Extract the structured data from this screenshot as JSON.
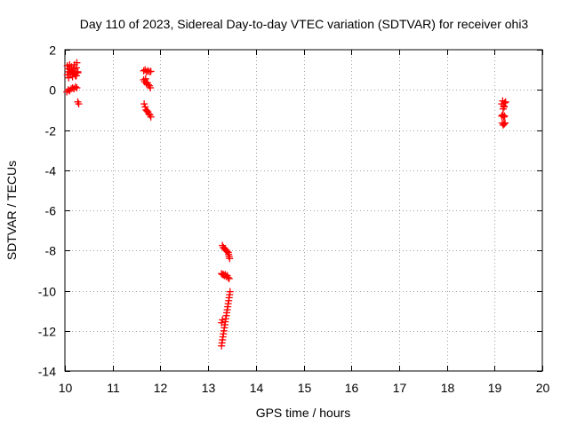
{
  "chart_data": {
    "type": "scatter",
    "title": "Day 110 of 2023, Sidereal Day-to-day VTEC variation (SDTVAR) for receiver ohi3",
    "xlabel": "GPS time / hours",
    "ylabel": "SDTVAR / TECUs",
    "xlim": [
      10,
      20
    ],
    "ylim": [
      -14,
      2
    ],
    "xticks": [
      10,
      11,
      12,
      13,
      14,
      15,
      16,
      17,
      18,
      19,
      20
    ],
    "yticks": [
      2,
      0,
      -2,
      -4,
      -6,
      -8,
      -10,
      -12,
      -14
    ],
    "grid": true,
    "marker": "+",
    "color": "#ff0000",
    "points": [
      [
        10.05,
        1.2
      ],
      [
        10.07,
        1.05
      ],
      [
        10.08,
        0.9
      ],
      [
        10.1,
        1.25
      ],
      [
        10.11,
        1.0
      ],
      [
        10.12,
        0.75
      ],
      [
        10.14,
        1.15
      ],
      [
        10.15,
        0.95
      ],
      [
        10.17,
        0.8
      ],
      [
        10.18,
        1.05
      ],
      [
        10.2,
        1.25
      ],
      [
        10.21,
        0.9
      ],
      [
        10.22,
        0.7
      ],
      [
        10.24,
        1.1
      ],
      [
        10.25,
        1.35
      ],
      [
        10.27,
        0.85
      ],
      [
        10.05,
        0.75
      ],
      [
        10.08,
        0.6
      ],
      [
        10.12,
        0.85
      ],
      [
        10.16,
        0.65
      ],
      [
        10.2,
        0.8
      ],
      [
        10.24,
        0.7
      ],
      [
        10.27,
        0.9
      ],
      [
        10.04,
        -0.1
      ],
      [
        10.07,
        0.0
      ],
      [
        10.1,
        -0.05
      ],
      [
        10.13,
        0.05
      ],
      [
        10.16,
        0.1
      ],
      [
        10.19,
        0.05
      ],
      [
        10.22,
        0.15
      ],
      [
        10.25,
        0.1
      ],
      [
        10.27,
        -0.6
      ],
      [
        10.29,
        -0.7
      ],
      [
        11.65,
        0.95
      ],
      [
        11.68,
        1.0
      ],
      [
        11.71,
        0.9
      ],
      [
        11.74,
        0.95
      ],
      [
        11.77,
        0.9
      ],
      [
        11.8,
        0.92
      ],
      [
        11.65,
        0.5
      ],
      [
        11.67,
        0.4
      ],
      [
        11.69,
        0.55
      ],
      [
        11.71,
        0.3
      ],
      [
        11.73,
        0.35
      ],
      [
        11.75,
        0.25
      ],
      [
        11.77,
        0.2
      ],
      [
        11.79,
        0.1
      ],
      [
        11.66,
        -0.7
      ],
      [
        11.68,
        -0.85
      ],
      [
        11.7,
        -1.0
      ],
      [
        11.72,
        -1.05
      ],
      [
        11.74,
        -1.1
      ],
      [
        11.76,
        -1.2
      ],
      [
        11.78,
        -1.25
      ],
      [
        11.8,
        -1.35
      ],
      [
        13.3,
        -7.75
      ],
      [
        13.32,
        -7.85
      ],
      [
        13.34,
        -7.9
      ],
      [
        13.36,
        -7.95
      ],
      [
        13.38,
        -8.0
      ],
      [
        13.4,
        -8.05
      ],
      [
        13.42,
        -8.1
      ],
      [
        13.43,
        -8.2
      ],
      [
        13.44,
        -8.3
      ],
      [
        13.45,
        -8.4
      ],
      [
        13.28,
        -9.15
      ],
      [
        13.3,
        -9.2
      ],
      [
        13.32,
        -9.2
      ],
      [
        13.34,
        -9.25
      ],
      [
        13.36,
        -9.2
      ],
      [
        13.38,
        -9.3
      ],
      [
        13.4,
        -9.25
      ],
      [
        13.42,
        -9.35
      ],
      [
        13.44,
        -9.4
      ],
      [
        13.46,
        -10.05
      ],
      [
        13.45,
        -10.2
      ],
      [
        13.44,
        -10.35
      ],
      [
        13.43,
        -10.5
      ],
      [
        13.42,
        -10.65
      ],
      [
        13.41,
        -10.8
      ],
      [
        13.4,
        -10.95
      ],
      [
        13.39,
        -11.1
      ],
      [
        13.38,
        -11.25
      ],
      [
        13.37,
        -11.4
      ],
      [
        13.36,
        -11.55
      ],
      [
        13.35,
        -11.7
      ],
      [
        13.34,
        -11.85
      ],
      [
        13.33,
        -12.0
      ],
      [
        13.32,
        -12.15
      ],
      [
        13.31,
        -12.3
      ],
      [
        13.3,
        -12.45
      ],
      [
        13.29,
        -12.6
      ],
      [
        13.28,
        -12.75
      ],
      [
        13.3,
        -11.45
      ],
      [
        13.28,
        -11.6
      ],
      [
        19.15,
        -0.7
      ],
      [
        19.17,
        -0.55
      ],
      [
        19.19,
        -0.8
      ],
      [
        19.21,
        -0.65
      ],
      [
        19.23,
        -0.6
      ],
      [
        19.18,
        -0.95
      ],
      [
        19.2,
        -0.85
      ],
      [
        19.15,
        -1.3
      ],
      [
        19.17,
        -1.25
      ],
      [
        19.19,
        -1.35
      ],
      [
        19.21,
        -1.3
      ],
      [
        19.16,
        -1.65
      ],
      [
        19.18,
        -1.75
      ],
      [
        19.2,
        -1.7
      ],
      [
        19.22,
        -1.65
      ]
    ]
  }
}
